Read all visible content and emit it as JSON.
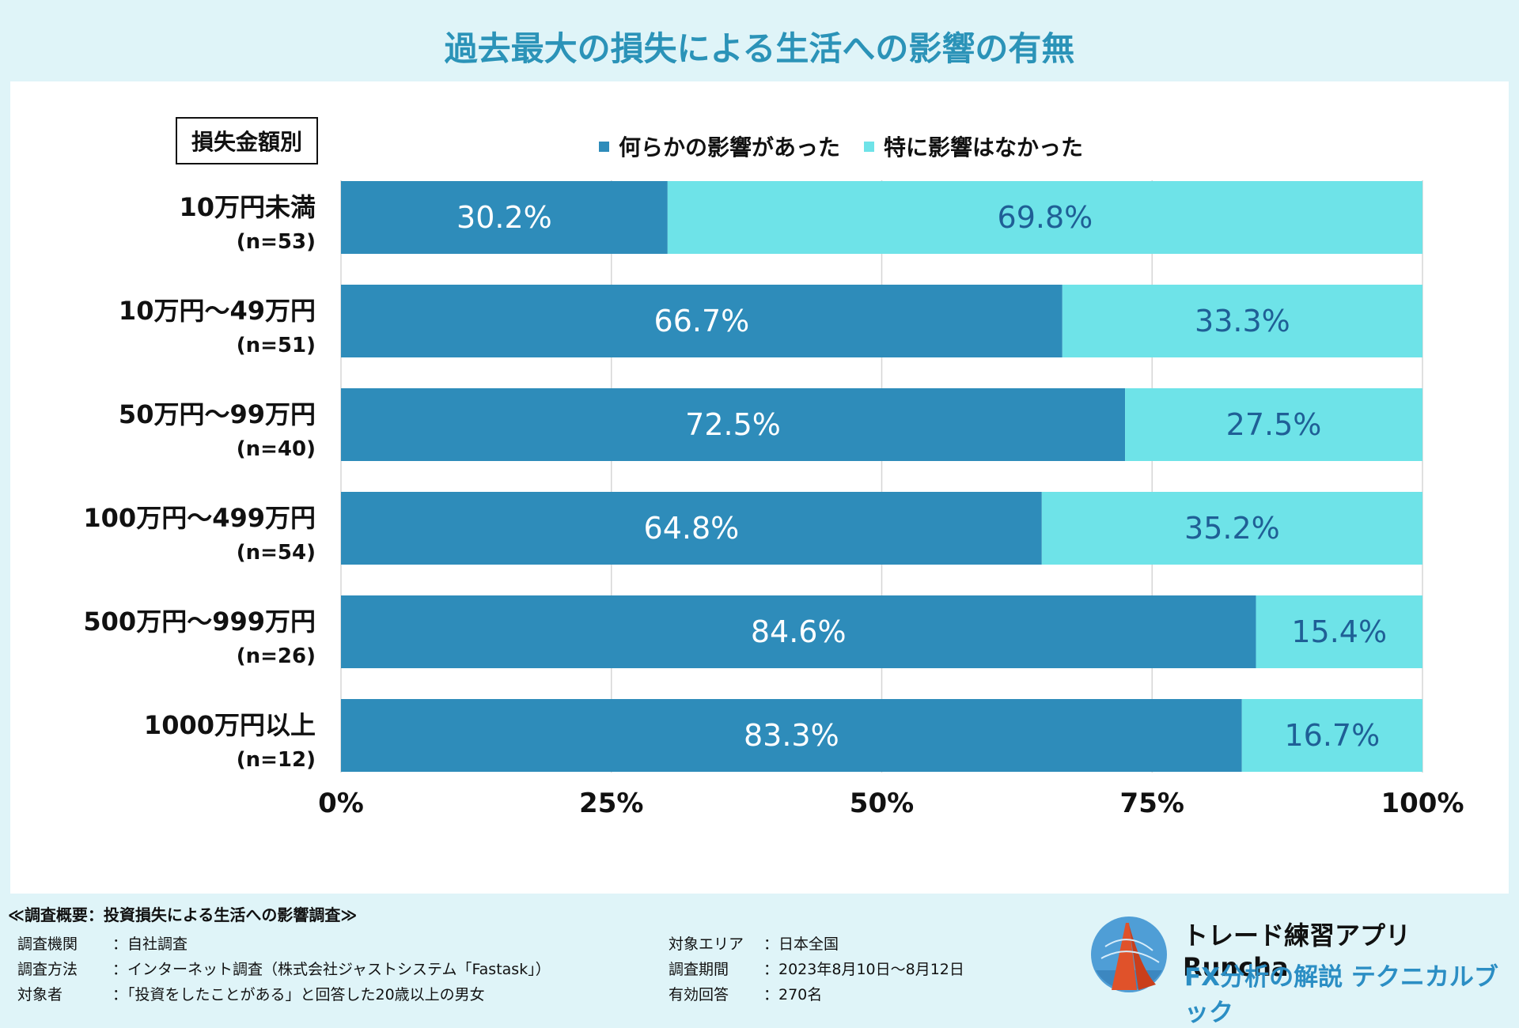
{
  "title": "過去最大の損失による生活への影響の有無",
  "group_label": "損失金額別",
  "colors": {
    "series1": "#2e8cba",
    "series2": "#6ee3e8",
    "title": "#2b93b8",
    "grid": "#d6d6d6"
  },
  "chart_data": {
    "type": "bar",
    "orientation": "horizontal-stacked-100",
    "categories": [
      "10万円未満",
      "10万円～49万円",
      "50万円～99万円",
      "100万円～499万円",
      "500万円～999万円",
      "1000万円以上"
    ],
    "sample_sizes": [
      "(n=53)",
      "(n=51)",
      "(n=40)",
      "(n=54)",
      "(n=26)",
      "(n=12)"
    ],
    "series": [
      {
        "name": "何らかの影響があった",
        "values": [
          30.2,
          66.7,
          72.5,
          64.8,
          84.6,
          83.3
        ],
        "labels": [
          "30.2%",
          "66.7%",
          "72.5%",
          "64.8%",
          "84.6%",
          "83.3%"
        ]
      },
      {
        "name": "特に影響はなかった",
        "values": [
          69.8,
          33.3,
          27.5,
          35.2,
          15.4,
          16.7
        ],
        "labels": [
          "69.8%",
          "33.3%",
          "27.5%",
          "35.2%",
          "15.4%",
          "16.7%"
        ]
      }
    ],
    "xlim": [
      0,
      100
    ],
    "xticks": [
      "0%",
      "25%",
      "50%",
      "75%",
      "100%"
    ],
    "legend_position": "top",
    "grid": true
  },
  "footer": {
    "heading": "≪調査概要：投資損失による生活への影響調査≫",
    "left": [
      {
        "k": "調査機関",
        "v": "：自社調査"
      },
      {
        "k": "調査方法",
        "v": "：インターネット調査（株式会社ジャストシステム「Fastask」）"
      },
      {
        "k": "対象者",
        "v": "：「投資をしたことがある」と回答した20歳以上の男女"
      }
    ],
    "right": [
      {
        "k": "対象エリア",
        "v": "：日本全国"
      },
      {
        "k": "調査期間",
        "v": "：2023年8月10日～8月12日"
      },
      {
        "k": "有効回答",
        "v": "：270名"
      }
    ]
  },
  "brand": {
    "line1": "トレード練習アプリ Runcha",
    "line2": "FX分析の解説 テクニカルブック",
    "logo": "runcha-logo-icon"
  }
}
